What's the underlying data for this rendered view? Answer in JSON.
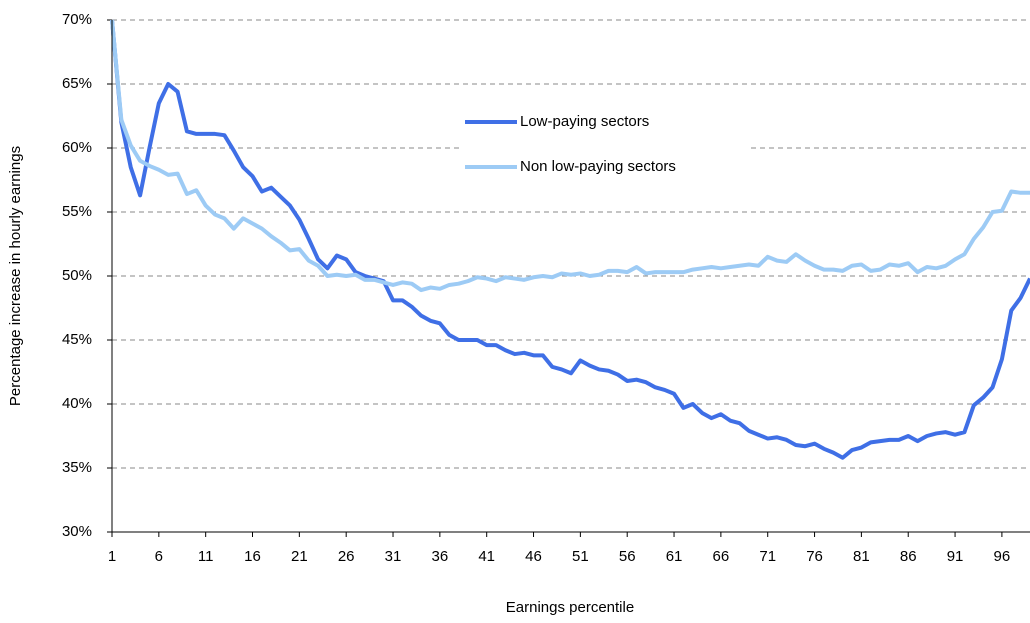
{
  "chart_data": {
    "type": "line",
    "xlabel": "Earnings percentile",
    "ylabel": "Percentage increase in hourly earnings",
    "x": [
      1,
      2,
      3,
      4,
      5,
      6,
      7,
      8,
      9,
      10,
      11,
      12,
      13,
      14,
      15,
      16,
      17,
      18,
      19,
      20,
      21,
      22,
      23,
      24,
      25,
      26,
      27,
      28,
      29,
      30,
      31,
      32,
      33,
      34,
      35,
      36,
      37,
      38,
      39,
      40,
      41,
      42,
      43,
      44,
      45,
      46,
      47,
      48,
      49,
      50,
      51,
      52,
      53,
      54,
      55,
      56,
      57,
      58,
      59,
      60,
      61,
      62,
      63,
      64,
      65,
      66,
      67,
      68,
      69,
      70,
      71,
      72,
      73,
      74,
      75,
      76,
      77,
      78,
      79,
      80,
      81,
      82,
      83,
      84,
      85,
      86,
      87,
      88,
      89,
      90,
      91,
      92,
      93,
      94,
      95,
      96,
      97,
      98,
      99
    ],
    "series": [
      {
        "name": "Low-paying sectors",
        "color": "#3f6fe6",
        "values": [
          70,
          62,
          58.5,
          56.3,
          60,
          63.5,
          65,
          64.4,
          61.3,
          61.1,
          61.1,
          61.1,
          61,
          59.8,
          58.5,
          57.8,
          56.6,
          56.9,
          56.2,
          55.5,
          54.4,
          52.9,
          51.3,
          50.6,
          51.6,
          51.3,
          50.3,
          50,
          49.8,
          49.6,
          48.1,
          48.1,
          47.6,
          46.9,
          46.5,
          46.3,
          45.4,
          45,
          45,
          45,
          44.6,
          44.6,
          44.2,
          43.9,
          44,
          43.8,
          43.8,
          42.9,
          42.7,
          42.4,
          43.4,
          43,
          42.7,
          42.6,
          42.3,
          41.8,
          41.9,
          41.7,
          41.3,
          41.1,
          40.8,
          39.7,
          40,
          39.3,
          38.9,
          39.2,
          38.7,
          38.5,
          37.9,
          37.6,
          37.3,
          37.4,
          37.2,
          36.8,
          36.7,
          36.9,
          36.5,
          36.2,
          35.8,
          36.4,
          36.6,
          37,
          37.1,
          37.2,
          37.2,
          37.5,
          37.1,
          37.5,
          37.7,
          37.8,
          37.6,
          37.8,
          39.9,
          40.5,
          41.3,
          43.5,
          47.3,
          48.3,
          49.8
        ]
      },
      {
        "name": "Non low-paying sectors",
        "color": "#9dcbf5",
        "values": [
          70,
          62.2,
          60.2,
          59,
          58.6,
          58.3,
          57.9,
          58,
          56.4,
          56.7,
          55.5,
          54.8,
          54.5,
          53.7,
          54.5,
          54.1,
          53.7,
          53.1,
          52.6,
          52,
          52.1,
          51.2,
          50.8,
          50,
          50.1,
          50,
          50.1,
          49.7,
          49.7,
          49.5,
          49.3,
          49.5,
          49.4,
          48.9,
          49.1,
          49,
          49.3,
          49.4,
          49.6,
          49.9,
          49.8,
          49.6,
          49.9,
          49.8,
          49.7,
          49.9,
          50,
          49.9,
          50.2,
          50.1,
          50.2,
          50,
          50.1,
          50.4,
          50.4,
          50.3,
          50.7,
          50.2,
          50.3,
          50.3,
          50.3,
          50.3,
          50.5,
          50.6,
          50.7,
          50.6,
          50.7,
          50.8,
          50.9,
          50.8,
          51.5,
          51.2,
          51.1,
          51.7,
          51.2,
          50.8,
          50.5,
          50.5,
          50.4,
          50.8,
          50.9,
          50.4,
          50.5,
          50.9,
          50.8,
          51,
          50.3,
          50.7,
          50.6,
          50.8,
          51.3,
          51.7,
          52.9,
          53.8,
          55,
          55.1,
          56.6,
          56.5,
          56.5
        ]
      }
    ],
    "xlim": [
      1,
      99
    ],
    "xticks": [
      1,
      6,
      11,
      16,
      21,
      26,
      31,
      36,
      41,
      46,
      51,
      56,
      61,
      66,
      71,
      76,
      81,
      86,
      91,
      96
    ],
    "ylim": [
      30,
      70
    ],
    "yticks": [
      {
        "value": 30,
        "label": "30%"
      },
      {
        "value": 35,
        "label": "35%"
      },
      {
        "value": 40,
        "label": "40%"
      },
      {
        "value": 45,
        "label": "45%"
      },
      {
        "value": 50,
        "label": "50%"
      },
      {
        "value": 55,
        "label": "55%"
      },
      {
        "value": 60,
        "label": "60%"
      },
      {
        "value": 65,
        "label": "65%"
      },
      {
        "value": 70,
        "label": "70%"
      }
    ],
    "grid": true,
    "legend": "upper center"
  }
}
